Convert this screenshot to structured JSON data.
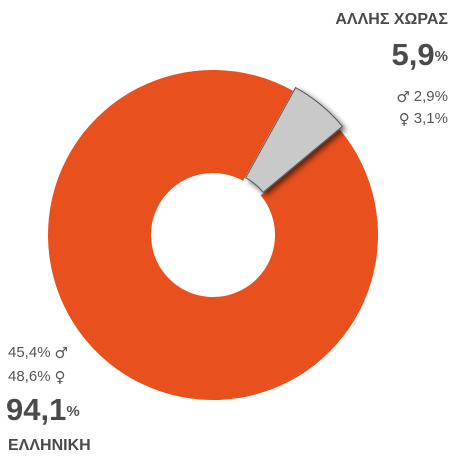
{
  "chart_data": {
    "type": "pie",
    "donut": true,
    "categories": [
      "ΕΛΛΗΝΙΚΗ",
      "ΑΛΛΗΣ ΧΩΡΑΣ"
    ],
    "values": [
      94.1,
      5.9
    ],
    "value_labels": [
      "94,1",
      "5,9"
    ],
    "unit": "%",
    "colors": [
      "#e8501e",
      "#c9c9c9"
    ],
    "symbols": [
      "♂",
      "♀"
    ],
    "breakdown": [
      [
        "45,4%",
        "48,6%"
      ],
      [
        "2,9%",
        "3,1%"
      ]
    ]
  }
}
